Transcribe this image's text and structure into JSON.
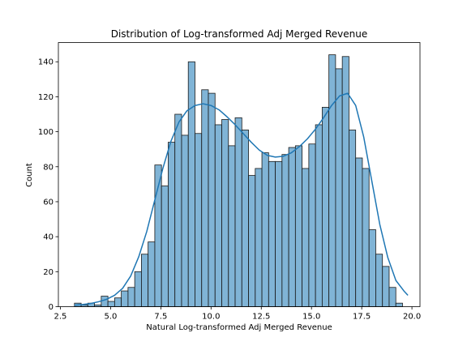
{
  "chart_data": {
    "type": "bar",
    "subtype": "histogram-with-kde",
    "title": "Distribution of Log-transformed Adj Merged Revenue",
    "xlabel": "Natural Log-transformed Adj Merged Revenue",
    "ylabel": "Count",
    "xlim": [
      2.4,
      20.4
    ],
    "ylim": [
      0,
      151
    ],
    "xticks": [
      2.5,
      5.0,
      7.5,
      10.0,
      12.5,
      15.0,
      17.5,
      20.0
    ],
    "xtick_labels": [
      "2.5",
      "5.0",
      "7.5",
      "10.0",
      "12.5",
      "15.0",
      "17.5",
      "20.0"
    ],
    "yticks": [
      0,
      20,
      40,
      60,
      80,
      100,
      120,
      140
    ],
    "ytick_labels": [
      "0",
      "20",
      "40",
      "60",
      "80",
      "100",
      "120",
      "140"
    ],
    "grid": false,
    "bar_color": "#6aa7cf",
    "bar_edge_color": "#1a1a1a",
    "kde_color": "#1f77b4",
    "bins": {
      "start": 3.2,
      "width": 0.3333,
      "counts": [
        2,
        1,
        2,
        1,
        6,
        3,
        5,
        9,
        11,
        20,
        30,
        37,
        81,
        69,
        94,
        110,
        98,
        140,
        99,
        124,
        122,
        104,
        107,
        92,
        108,
        101,
        75,
        79,
        88,
        83,
        83,
        87,
        91,
        92,
        79,
        93,
        104,
        114,
        144,
        136,
        143,
        101,
        85,
        79,
        44,
        30,
        23,
        11,
        2
      ]
    },
    "kde": {
      "x": [
        3.2,
        3.6,
        4.0,
        4.4,
        4.8,
        5.2,
        5.6,
        6.0,
        6.4,
        6.8,
        7.2,
        7.6,
        8.0,
        8.4,
        8.8,
        9.2,
        9.6,
        10.0,
        10.4,
        10.8,
        11.2,
        11.6,
        12.0,
        12.4,
        12.8,
        13.2,
        13.6,
        14.0,
        14.4,
        14.8,
        15.2,
        15.6,
        16.0,
        16.4,
        16.8,
        17.2,
        17.6,
        18.0,
        18.4,
        18.8,
        19.2,
        19.6,
        19.8
      ],
      "y": [
        0.8,
        1.2,
        1.8,
        2.8,
        4.2,
        6.5,
        10.5,
        17.5,
        28.5,
        43.0,
        61.0,
        79.0,
        94.5,
        105.5,
        112.0,
        115.0,
        116.0,
        115.0,
        112.5,
        108.5,
        104.0,
        99.0,
        94.0,
        89.5,
        86.5,
        85.5,
        86.0,
        88.0,
        91.5,
        96.0,
        101.5,
        108.0,
        115.0,
        120.5,
        122.0,
        115.0,
        97.0,
        72.0,
        47.0,
        28.0,
        15.0,
        9.0,
        6.5
      ]
    }
  }
}
